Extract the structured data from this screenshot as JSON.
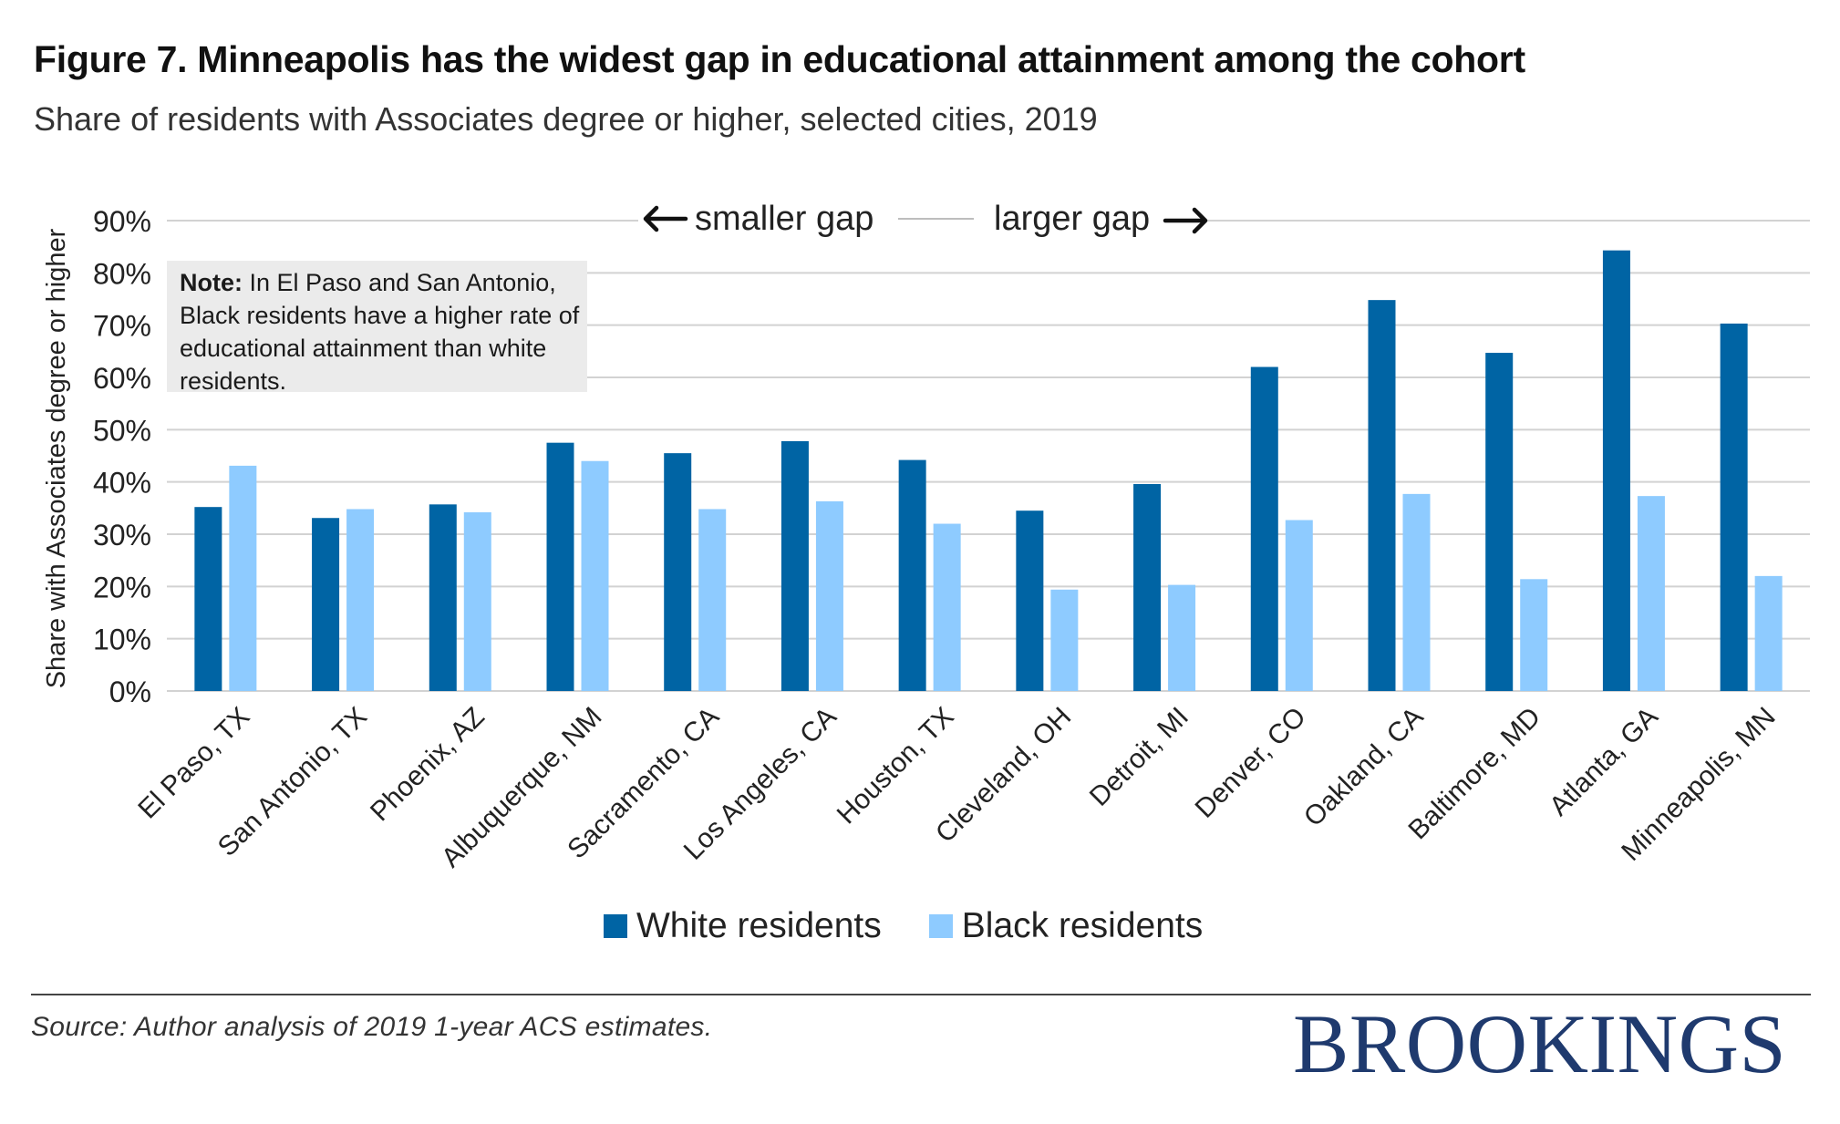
{
  "header": {
    "title": "Figure 7. Minneapolis has the widest gap in educational attainment among the cohort",
    "subtitle": "Share of residents with Associates degree or higher, selected cities, 2019"
  },
  "note": {
    "bold": "Note:",
    "text": " In El Paso and San Antonio, Black residents have a higher rate of educational attainment than white residents."
  },
  "annotations": {
    "smaller_gap": "smaller gap",
    "larger_gap": "larger gap"
  },
  "colors": {
    "white_series": "#0064a4",
    "black_series": "#8ecbff",
    "grid": "#d2d2d2",
    "brand": "#1f3a6e"
  },
  "chart_data": {
    "type": "bar",
    "title": "Figure 7. Minneapolis has the widest gap in educational attainment among the cohort",
    "subtitle": "Share of residents with Associates degree or higher, selected cities, 2019",
    "xlabel": "",
    "ylabel": "Share with Associates degree or higher",
    "ylim": [
      0,
      90
    ],
    "yticks": [
      0,
      10,
      20,
      30,
      40,
      50,
      60,
      70,
      80,
      90
    ],
    "ytick_labels": [
      "0%",
      "10%",
      "20%",
      "30%",
      "40%",
      "50%",
      "60%",
      "70%",
      "80%",
      "90%"
    ],
    "grid": true,
    "legend_position": "bottom",
    "categories": [
      "El Paso, TX",
      "San Antonio, TX",
      "Phoenix, AZ",
      "Albuquerque, NM",
      "Sacramento, CA",
      "Los Angeles, CA",
      "Houston, TX",
      "Cleveland, OH",
      "Detroit, MI",
      "Denver, CO",
      "Oakland, CA",
      "Baltimore, MD",
      "Atlanta, GA",
      "Minneapolis, MN"
    ],
    "series": [
      {
        "name": "White residents",
        "color": "#0064a4",
        "values": [
          35.2,
          33.1,
          35.7,
          47.5,
          45.5,
          47.8,
          44.2,
          34.5,
          39.6,
          62.0,
          74.8,
          64.7,
          84.3,
          70.3
        ]
      },
      {
        "name": "Black residents",
        "color": "#8ecbff",
        "values": [
          43.1,
          34.8,
          34.2,
          44.0,
          34.8,
          36.3,
          32.0,
          19.4,
          20.3,
          32.7,
          37.7,
          21.4,
          37.3,
          22.0
        ]
      }
    ]
  },
  "legend": {
    "items": [
      {
        "label": "White residents",
        "color": "#0064a4"
      },
      {
        "label": "Black residents",
        "color": "#8ecbff"
      }
    ]
  },
  "footer": {
    "source": "Source: Author analysis of 2019 1-year ACS estimates.",
    "logo": "BROOKINGS"
  }
}
